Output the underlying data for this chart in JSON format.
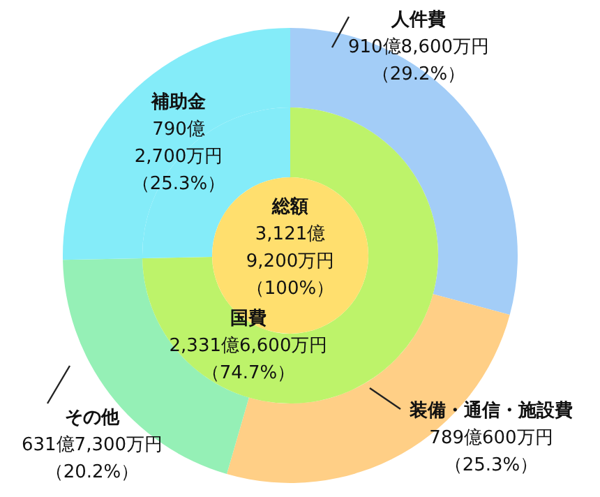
{
  "chart_data": [
    {
      "type": "donut",
      "categories": [
        "人件費",
        "装備・通信・施設費",
        "その他",
        "補助金"
      ],
      "values": [
        29.2,
        25.3,
        20.2,
        25.3
      ],
      "colors": [
        "#a3cdf7",
        "#ffcf86",
        "#95f0b6",
        "#84ecf9"
      ],
      "value_labels": [
        "910億8,600万円（29.2%）",
        "789億600万円（25.3%）",
        "631億7,300万円（20.2%）",
        "790億2,700万円（25.3%）"
      ]
    },
    {
      "type": "donut",
      "categories": [
        "国費",
        null
      ],
      "values": [
        74.7,
        25.3
      ],
      "colors": [
        "#bdf36a",
        "#84ecf9"
      ],
      "value_labels": [
        "2,331億6,600万円（74.7%）",
        null
      ]
    },
    {
      "type": "pie",
      "categories": [
        "総額"
      ],
      "values": [
        100
      ],
      "colors": [
        "#ffdf6e"
      ],
      "value_labels": [
        "3,121億9,200万円（100%）"
      ]
    }
  ]
}
